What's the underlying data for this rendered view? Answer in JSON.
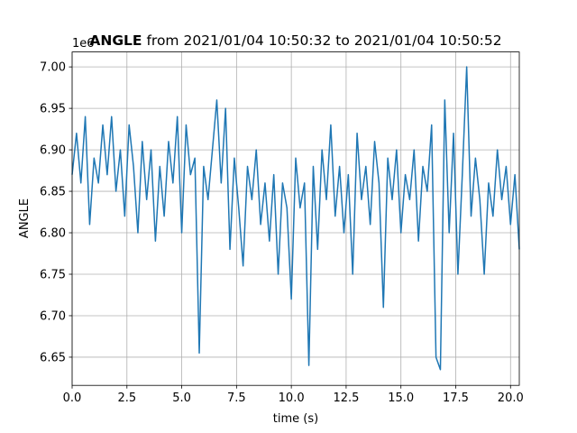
{
  "chart_data": {
    "type": "line",
    "title_bold": "ANGLE",
    "title_rest": "from 2021/01/04 10:50:32 to 2021/01/04 10:50:52",
    "xlabel": "time (s)",
    "ylabel": "ANGLE",
    "offset_label": "1e6",
    "grid": true,
    "xlim": [
      0,
      20.4
    ],
    "ylim": [
      6.616,
      7.018
    ],
    "xticks": [
      {
        "value": 0,
        "label": "0.0"
      },
      2.5,
      {
        "value": 5,
        "label": "5.0"
      },
      7.5,
      {
        "value": 10,
        "label": "10.0"
      },
      12.5,
      {
        "value": 15,
        "label": "15.0"
      },
      17.5,
      {
        "value": 20,
        "label": "20.0"
      }
    ],
    "yticks": [
      {
        "value": 6.65,
        "label": "6.65"
      },
      {
        "value": 6.7,
        "label": "6.70"
      },
      {
        "value": 6.75,
        "label": "6.75"
      },
      {
        "value": 6.8,
        "label": "6.80"
      },
      {
        "value": 6.85,
        "label": "6.85"
      },
      {
        "value": 6.9,
        "label": "6.90"
      },
      {
        "value": 6.95,
        "label": "6.95"
      },
      {
        "value": 7,
        "label": "7.00"
      }
    ],
    "series": [
      {
        "name": "ANGLE",
        "color": "#1f77b4",
        "x": [
          0,
          0.2,
          0.4,
          0.6,
          0.8,
          1,
          1.2,
          1.4,
          1.6,
          1.8,
          2,
          2.2,
          2.4,
          2.6,
          2.8,
          3,
          3.2,
          3.4,
          3.6,
          3.8,
          4,
          4.2,
          4.4,
          4.6,
          4.8,
          5,
          5.2,
          5.4,
          5.6,
          5.8,
          6,
          6.2,
          6.4,
          6.6,
          6.8,
          7,
          7.2,
          7.4,
          7.6,
          7.8,
          8,
          8.2,
          8.4,
          8.6,
          8.8,
          9,
          9.2,
          9.4,
          9.6,
          9.8,
          10,
          10.2,
          10.4,
          10.6,
          10.8,
          11,
          11.2,
          11.4,
          11.6,
          11.8,
          12,
          12.2,
          12.4,
          12.6,
          12.8,
          13,
          13.2,
          13.4,
          13.6,
          13.8,
          14,
          14.2,
          14.4,
          14.6,
          14.8,
          15,
          15.2,
          15.4,
          15.6,
          15.8,
          16,
          16.2,
          16.4,
          16.6,
          16.8,
          17,
          17.2,
          17.4,
          17.6,
          17.8,
          18,
          18.2,
          18.4,
          18.6,
          18.8,
          19,
          19.2,
          19.4,
          19.6,
          19.8,
          20,
          20.2,
          20.4
        ],
        "values": [
          6.87,
          6.92,
          6.86,
          6.94,
          6.81,
          6.89,
          6.86,
          6.93,
          6.87,
          6.94,
          6.85,
          6.9,
          6.82,
          6.93,
          6.88,
          6.8,
          6.91,
          6.84,
          6.9,
          6.79,
          6.88,
          6.82,
          6.91,
          6.86,
          6.94,
          6.8,
          6.93,
          6.87,
          6.89,
          6.655,
          6.88,
          6.84,
          6.9,
          6.96,
          6.86,
          6.95,
          6.78,
          6.89,
          6.83,
          6.76,
          6.88,
          6.84,
          6.9,
          6.81,
          6.86,
          6.79,
          6.87,
          6.75,
          6.86,
          6.83,
          6.72,
          6.89,
          6.83,
          6.86,
          6.64,
          6.88,
          6.78,
          6.9,
          6.84,
          6.93,
          6.82,
          6.88,
          6.8,
          6.87,
          6.75,
          6.92,
          6.84,
          6.88,
          6.81,
          6.91,
          6.86,
          6.71,
          6.89,
          6.84,
          6.9,
          6.8,
          6.87,
          6.84,
          6.9,
          6.79,
          6.88,
          6.85,
          6.93,
          6.65,
          6.635,
          6.96,
          6.8,
          6.92,
          6.75,
          6.87,
          7,
          6.82,
          6.89,
          6.84,
          6.75,
          6.86,
          6.82,
          6.9,
          6.84,
          6.88,
          6.81,
          6.87,
          6.78
        ]
      }
    ]
  }
}
